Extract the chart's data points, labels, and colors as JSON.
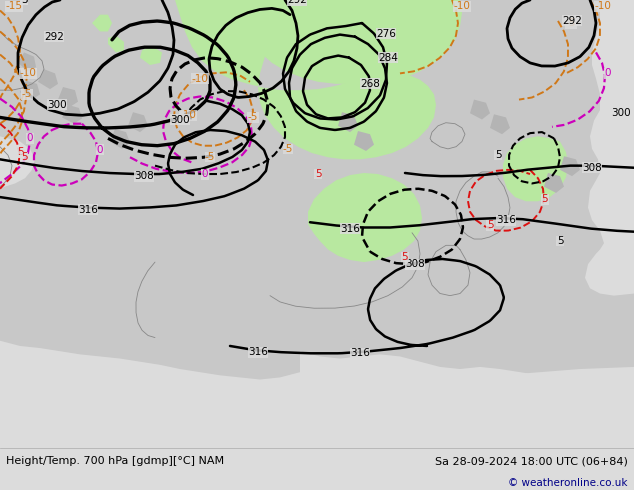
{
  "title_left": "Height/Temp. 700 hPa [gdmp][°C] NAM",
  "title_right": "Sa 28-09-2024 18:00 UTC (06+84)",
  "copyright": "© weatheronline.co.uk",
  "bg_color": "#dcdcdc",
  "ocean_color": "#dcdcdc",
  "land_color": "#c8c8c8",
  "green_color": "#b8e8a0",
  "font_size_labels": 7.5,
  "font_size_title": 8.0,
  "fig_width": 6.34,
  "fig_height": 4.9,
  "dpi": 100
}
